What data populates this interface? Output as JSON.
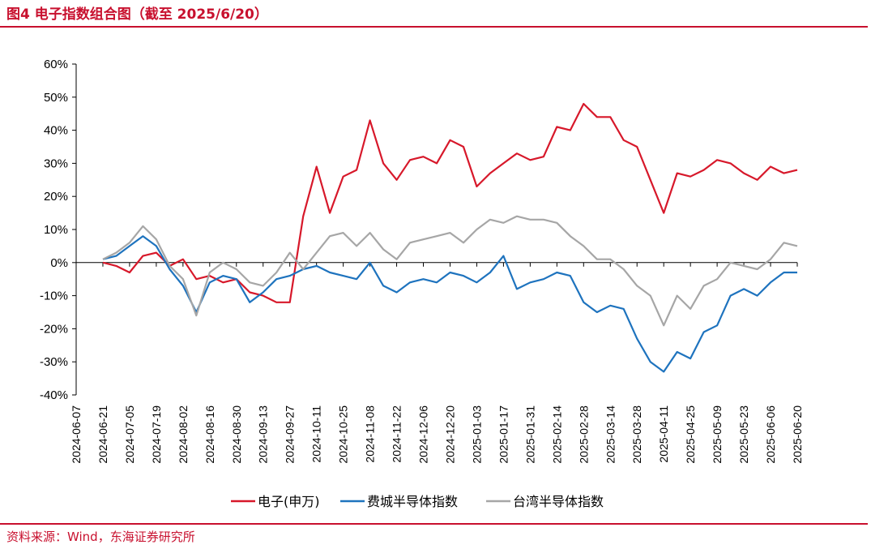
{
  "header": {
    "title": "图4 电子指数组合图（截至 2025/6/20）"
  },
  "footer": {
    "source": "资料来源：Wind，东海证券研究所"
  },
  "chart_data": {
    "type": "line",
    "title": "图4 电子指数组合图（截至 2025/6/20）",
    "ylim": [
      -40,
      60
    ],
    "y_ticks": [
      "60%",
      "50%",
      "40%",
      "30%",
      "20%",
      "10%",
      "0%",
      "-10%",
      "-20%",
      "-30%",
      "-40%"
    ],
    "x_tick_labels": [
      "2024-06-07",
      "2024-06-21",
      "2024-07-05",
      "2024-07-19",
      "2024-08-02",
      "2024-08-16",
      "2024-08-30",
      "2024-09-13",
      "2024-09-27",
      "2024-10-11",
      "2024-10-25",
      "2024-11-08",
      "2024-11-22",
      "2024-12-06",
      "2024-12-20",
      "2025-01-03",
      "2025-01-17",
      "2025-01-31",
      "2025-02-14",
      "2025-02-28",
      "2025-03-14",
      "2025-03-28",
      "2025-04-11",
      "2025-04-25",
      "2025-05-09",
      "2025-05-23",
      "2025-06-06",
      "2025-06-20"
    ],
    "legend_position": "bottom",
    "colors": {
      "series1": "#d7182a",
      "series2": "#1e73be",
      "series3": "#a6a6a6"
    },
    "series": [
      {
        "name": "电子(申万)",
        "values": [
          {
            "x": "2024-06-21",
            "y": 0
          },
          {
            "x": "2024-06-28",
            "y": -1
          },
          {
            "x": "2024-07-05",
            "y": -3
          },
          {
            "x": "2024-07-12",
            "y": 2
          },
          {
            "x": "2024-07-19",
            "y": 3
          },
          {
            "x": "2024-07-26",
            "y": -1
          },
          {
            "x": "2024-08-02",
            "y": 1
          },
          {
            "x": "2024-08-09",
            "y": -5
          },
          {
            "x": "2024-08-16",
            "y": -4
          },
          {
            "x": "2024-08-23",
            "y": -6
          },
          {
            "x": "2024-08-30",
            "y": -5
          },
          {
            "x": "2024-09-06",
            "y": -9
          },
          {
            "x": "2024-09-13",
            "y": -10
          },
          {
            "x": "2024-09-20",
            "y": -12
          },
          {
            "x": "2024-09-27",
            "y": -12
          },
          {
            "x": "2024-10-04",
            "y": 14
          },
          {
            "x": "2024-10-11",
            "y": 29
          },
          {
            "x": "2024-10-18",
            "y": 15
          },
          {
            "x": "2024-10-25",
            "y": 26
          },
          {
            "x": "2024-11-01",
            "y": 28
          },
          {
            "x": "2024-11-08",
            "y": 43
          },
          {
            "x": "2024-11-15",
            "y": 30
          },
          {
            "x": "2024-11-22",
            "y": 25
          },
          {
            "x": "2024-11-29",
            "y": 31
          },
          {
            "x": "2024-12-06",
            "y": 32
          },
          {
            "x": "2024-12-13",
            "y": 30
          },
          {
            "x": "2024-12-20",
            "y": 37
          },
          {
            "x": "2024-12-27",
            "y": 35
          },
          {
            "x": "2025-01-03",
            "y": 23
          },
          {
            "x": "2025-01-10",
            "y": 27
          },
          {
            "x": "2025-01-17",
            "y": 30
          },
          {
            "x": "2025-01-24",
            "y": 33
          },
          {
            "x": "2025-01-31",
            "y": 31
          },
          {
            "x": "2025-02-07",
            "y": 32
          },
          {
            "x": "2025-02-14",
            "y": 41
          },
          {
            "x": "2025-02-21",
            "y": 40
          },
          {
            "x": "2025-02-28",
            "y": 48
          },
          {
            "x": "2025-03-07",
            "y": 44
          },
          {
            "x": "2025-03-14",
            "y": 44
          },
          {
            "x": "2025-03-21",
            "y": 37
          },
          {
            "x": "2025-03-28",
            "y": 35
          },
          {
            "x": "2025-04-04",
            "y": 25
          },
          {
            "x": "2025-04-11",
            "y": 15
          },
          {
            "x": "2025-04-18",
            "y": 27
          },
          {
            "x": "2025-04-25",
            "y": 26
          },
          {
            "x": "2025-05-02",
            "y": 28
          },
          {
            "x": "2025-05-09",
            "y": 31
          },
          {
            "x": "2025-05-16",
            "y": 30
          },
          {
            "x": "2025-05-23",
            "y": 27
          },
          {
            "x": "2025-05-30",
            "y": 25
          },
          {
            "x": "2025-06-06",
            "y": 29
          },
          {
            "x": "2025-06-13",
            "y": 27
          },
          {
            "x": "2025-06-20",
            "y": 28
          }
        ]
      },
      {
        "name": "费城半导体指数",
        "values": [
          {
            "x": "2024-06-21",
            "y": 1
          },
          {
            "x": "2024-06-28",
            "y": 2
          },
          {
            "x": "2024-07-05",
            "y": 5
          },
          {
            "x": "2024-07-12",
            "y": 8
          },
          {
            "x": "2024-07-19",
            "y": 5
          },
          {
            "x": "2024-07-26",
            "y": -2
          },
          {
            "x": "2024-08-02",
            "y": -7
          },
          {
            "x": "2024-08-09",
            "y": -15
          },
          {
            "x": "2024-08-16",
            "y": -6
          },
          {
            "x": "2024-08-23",
            "y": -4
          },
          {
            "x": "2024-08-30",
            "y": -5
          },
          {
            "x": "2024-09-06",
            "y": -12
          },
          {
            "x": "2024-09-13",
            "y": -9
          },
          {
            "x": "2024-09-20",
            "y": -5
          },
          {
            "x": "2024-09-27",
            "y": -4
          },
          {
            "x": "2024-10-04",
            "y": -2
          },
          {
            "x": "2024-10-11",
            "y": -1
          },
          {
            "x": "2024-10-18",
            "y": -3
          },
          {
            "x": "2024-10-25",
            "y": -4
          },
          {
            "x": "2024-11-01",
            "y": -5
          },
          {
            "x": "2024-11-08",
            "y": 0
          },
          {
            "x": "2024-11-15",
            "y": -7
          },
          {
            "x": "2024-11-22",
            "y": -9
          },
          {
            "x": "2024-11-29",
            "y": -6
          },
          {
            "x": "2024-12-06",
            "y": -5
          },
          {
            "x": "2024-12-13",
            "y": -6
          },
          {
            "x": "2024-12-20",
            "y": -3
          },
          {
            "x": "2024-12-27",
            "y": -4
          },
          {
            "x": "2025-01-03",
            "y": -6
          },
          {
            "x": "2025-01-10",
            "y": -3
          },
          {
            "x": "2025-01-17",
            "y": 2
          },
          {
            "x": "2025-01-24",
            "y": -8
          },
          {
            "x": "2025-01-31",
            "y": -6
          },
          {
            "x": "2025-02-07",
            "y": -5
          },
          {
            "x": "2025-02-14",
            "y": -3
          },
          {
            "x": "2025-02-21",
            "y": -4
          },
          {
            "x": "2025-02-28",
            "y": -12
          },
          {
            "x": "2025-03-07",
            "y": -15
          },
          {
            "x": "2025-03-14",
            "y": -13
          },
          {
            "x": "2025-03-21",
            "y": -14
          },
          {
            "x": "2025-03-28",
            "y": -23
          },
          {
            "x": "2025-04-04",
            "y": -30
          },
          {
            "x": "2025-04-11",
            "y": -33
          },
          {
            "x": "2025-04-18",
            "y": -27
          },
          {
            "x": "2025-04-25",
            "y": -29
          },
          {
            "x": "2025-05-02",
            "y": -21
          },
          {
            "x": "2025-05-09",
            "y": -19
          },
          {
            "x": "2025-05-16",
            "y": -10
          },
          {
            "x": "2025-05-23",
            "y": -8
          },
          {
            "x": "2025-05-30",
            "y": -10
          },
          {
            "x": "2025-06-06",
            "y": -6
          },
          {
            "x": "2025-06-13",
            "y": -3
          },
          {
            "x": "2025-06-20",
            "y": -3
          }
        ]
      },
      {
        "name": "台湾半导体指数",
        "values": [
          {
            "x": "2024-06-21",
            "y": 1
          },
          {
            "x": "2024-06-28",
            "y": 3
          },
          {
            "x": "2024-07-05",
            "y": 6
          },
          {
            "x": "2024-07-12",
            "y": 11
          },
          {
            "x": "2024-07-19",
            "y": 7
          },
          {
            "x": "2024-07-26",
            "y": -1
          },
          {
            "x": "2024-08-02",
            "y": -5
          },
          {
            "x": "2024-08-09",
            "y": -16
          },
          {
            "x": "2024-08-16",
            "y": -3
          },
          {
            "x": "2024-08-23",
            "y": 0
          },
          {
            "x": "2024-08-30",
            "y": -2
          },
          {
            "x": "2024-09-06",
            "y": -6
          },
          {
            "x": "2024-09-13",
            "y": -7
          },
          {
            "x": "2024-09-20",
            "y": -3
          },
          {
            "x": "2024-09-27",
            "y": 3
          },
          {
            "x": "2024-10-04",
            "y": -2
          },
          {
            "x": "2024-10-11",
            "y": 3
          },
          {
            "x": "2024-10-18",
            "y": 8
          },
          {
            "x": "2024-10-25",
            "y": 9
          },
          {
            "x": "2024-11-01",
            "y": 5
          },
          {
            "x": "2024-11-08",
            "y": 9
          },
          {
            "x": "2024-11-15",
            "y": 4
          },
          {
            "x": "2024-11-22",
            "y": 1
          },
          {
            "x": "2024-11-29",
            "y": 6
          },
          {
            "x": "2024-12-06",
            "y": 7
          },
          {
            "x": "2024-12-13",
            "y": 8
          },
          {
            "x": "2024-12-20",
            "y": 9
          },
          {
            "x": "2024-12-27",
            "y": 6
          },
          {
            "x": "2025-01-03",
            "y": 10
          },
          {
            "x": "2025-01-10",
            "y": 13
          },
          {
            "x": "2025-01-17",
            "y": 12
          },
          {
            "x": "2025-01-24",
            "y": 14
          },
          {
            "x": "2025-01-31",
            "y": 13
          },
          {
            "x": "2025-02-07",
            "y": 13
          },
          {
            "x": "2025-02-14",
            "y": 12
          },
          {
            "x": "2025-02-21",
            "y": 8
          },
          {
            "x": "2025-02-28",
            "y": 5
          },
          {
            "x": "2025-03-07",
            "y": 1
          },
          {
            "x": "2025-03-14",
            "y": 1
          },
          {
            "x": "2025-03-21",
            "y": -2
          },
          {
            "x": "2025-03-28",
            "y": -7
          },
          {
            "x": "2025-04-04",
            "y": -10
          },
          {
            "x": "2025-04-11",
            "y": -19
          },
          {
            "x": "2025-04-18",
            "y": -10
          },
          {
            "x": "2025-04-25",
            "y": -14
          },
          {
            "x": "2025-05-02",
            "y": -7
          },
          {
            "x": "2025-05-09",
            "y": -5
          },
          {
            "x": "2025-05-16",
            "y": 0
          },
          {
            "x": "2025-05-23",
            "y": -1
          },
          {
            "x": "2025-05-30",
            "y": -2
          },
          {
            "x": "2025-06-06",
            "y": 1
          },
          {
            "x": "2025-06-13",
            "y": 6
          },
          {
            "x": "2025-06-20",
            "y": 5
          }
        ]
      }
    ]
  }
}
